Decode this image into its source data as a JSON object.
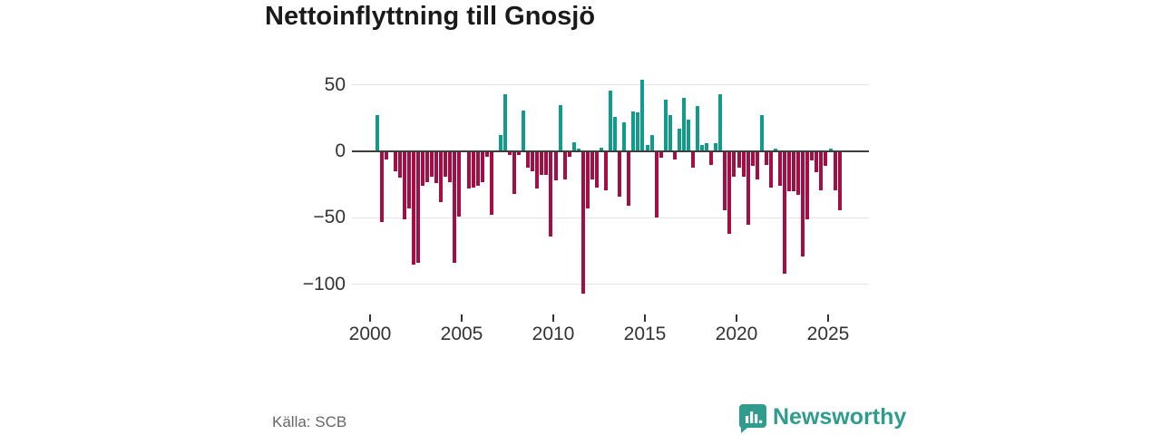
{
  "title": "Nettoinflyttning till Gnosjö",
  "footer": {
    "source": "Källa: SCB",
    "brand": "Newsworthy"
  },
  "colors": {
    "positive": "#119b8d",
    "negative": "#a50d45",
    "brand_teal": "#2f9c8e",
    "grid": "#e3e3e3",
    "axis": "#3d3d3d",
    "tick_text": "#333333",
    "title_text": "#1a1a1a",
    "source_text": "#666666"
  },
  "chart_data": {
    "type": "bar",
    "title": "Nettoinflyttning till Gnosjö",
    "xlabel": "",
    "ylabel": "",
    "x_unit": "quarter",
    "grid": "horizontal",
    "legend": "none",
    "ylim": [
      -110,
      55
    ],
    "yticks": [
      {
        "label": "50",
        "value": 50
      },
      {
        "label": "0",
        "value": 0
      },
      {
        "label": "−50",
        "value": -50
      },
      {
        "label": "−100",
        "value": -100
      }
    ],
    "xticks": [
      "2000",
      "2005",
      "2010",
      "2015",
      "2020",
      "2025"
    ],
    "series": [
      {
        "year": 2000,
        "q": [
          0,
          27,
          -53,
          -6
        ]
      },
      {
        "year": 2001,
        "q": [
          0,
          -15,
          -20,
          -51
        ]
      },
      {
        "year": 2002,
        "q": [
          -43,
          -85,
          -84,
          -26
        ]
      },
      {
        "year": 2003,
        "q": [
          -23,
          -19,
          -24,
          -38
        ]
      },
      {
        "year": 2004,
        "q": [
          -19,
          -23,
          -84,
          -49
        ]
      },
      {
        "year": 2005,
        "q": [
          0,
          -28,
          -27,
          -26
        ]
      },
      {
        "year": 2006,
        "q": [
          -23,
          -4,
          -48,
          0
        ]
      },
      {
        "year": 2007,
        "q": [
          12,
          43,
          -3,
          -32
        ]
      },
      {
        "year": 2008,
        "q": [
          -3,
          31,
          -12,
          -15
        ]
      },
      {
        "year": 2009,
        "q": [
          -28,
          -18,
          -18,
          -64
        ]
      },
      {
        "year": 2010,
        "q": [
          -22,
          35,
          -21,
          -4
        ]
      },
      {
        "year": 2011,
        "q": [
          7,
          2,
          -107,
          -43
        ]
      },
      {
        "year": 2012,
        "q": [
          -21,
          -27,
          3,
          -29
        ]
      },
      {
        "year": 2013,
        "q": [
          46,
          26,
          -34,
          22
        ]
      },
      {
        "year": 2014,
        "q": [
          -41,
          30,
          29,
          54
        ]
      },
      {
        "year": 2015,
        "q": [
          5,
          12,
          -50,
          -5
        ]
      },
      {
        "year": 2016,
        "q": [
          39,
          27,
          -6,
          17
        ]
      },
      {
        "year": 2017,
        "q": [
          40,
          24,
          -12,
          34
        ]
      },
      {
        "year": 2018,
        "q": [
          5,
          6,
          -10,
          6
        ]
      },
      {
        "year": 2019,
        "q": [
          43,
          -44,
          -62,
          -19
        ]
      },
      {
        "year": 2020,
        "q": [
          -12,
          -19,
          -55,
          -11
        ]
      },
      {
        "year": 2021,
        "q": [
          -21,
          27,
          -10,
          -27
        ]
      },
      {
        "year": 2022,
        "q": [
          2,
          -26,
          -92,
          -30
        ]
      },
      {
        "year": 2023,
        "q": [
          -30,
          -33,
          -79,
          -51
        ]
      },
      {
        "year": 2024,
        "q": [
          -7,
          -16,
          -29,
          -11
        ]
      },
      {
        "year": 2025,
        "q": [
          2,
          -29,
          -44
        ]
      }
    ]
  }
}
